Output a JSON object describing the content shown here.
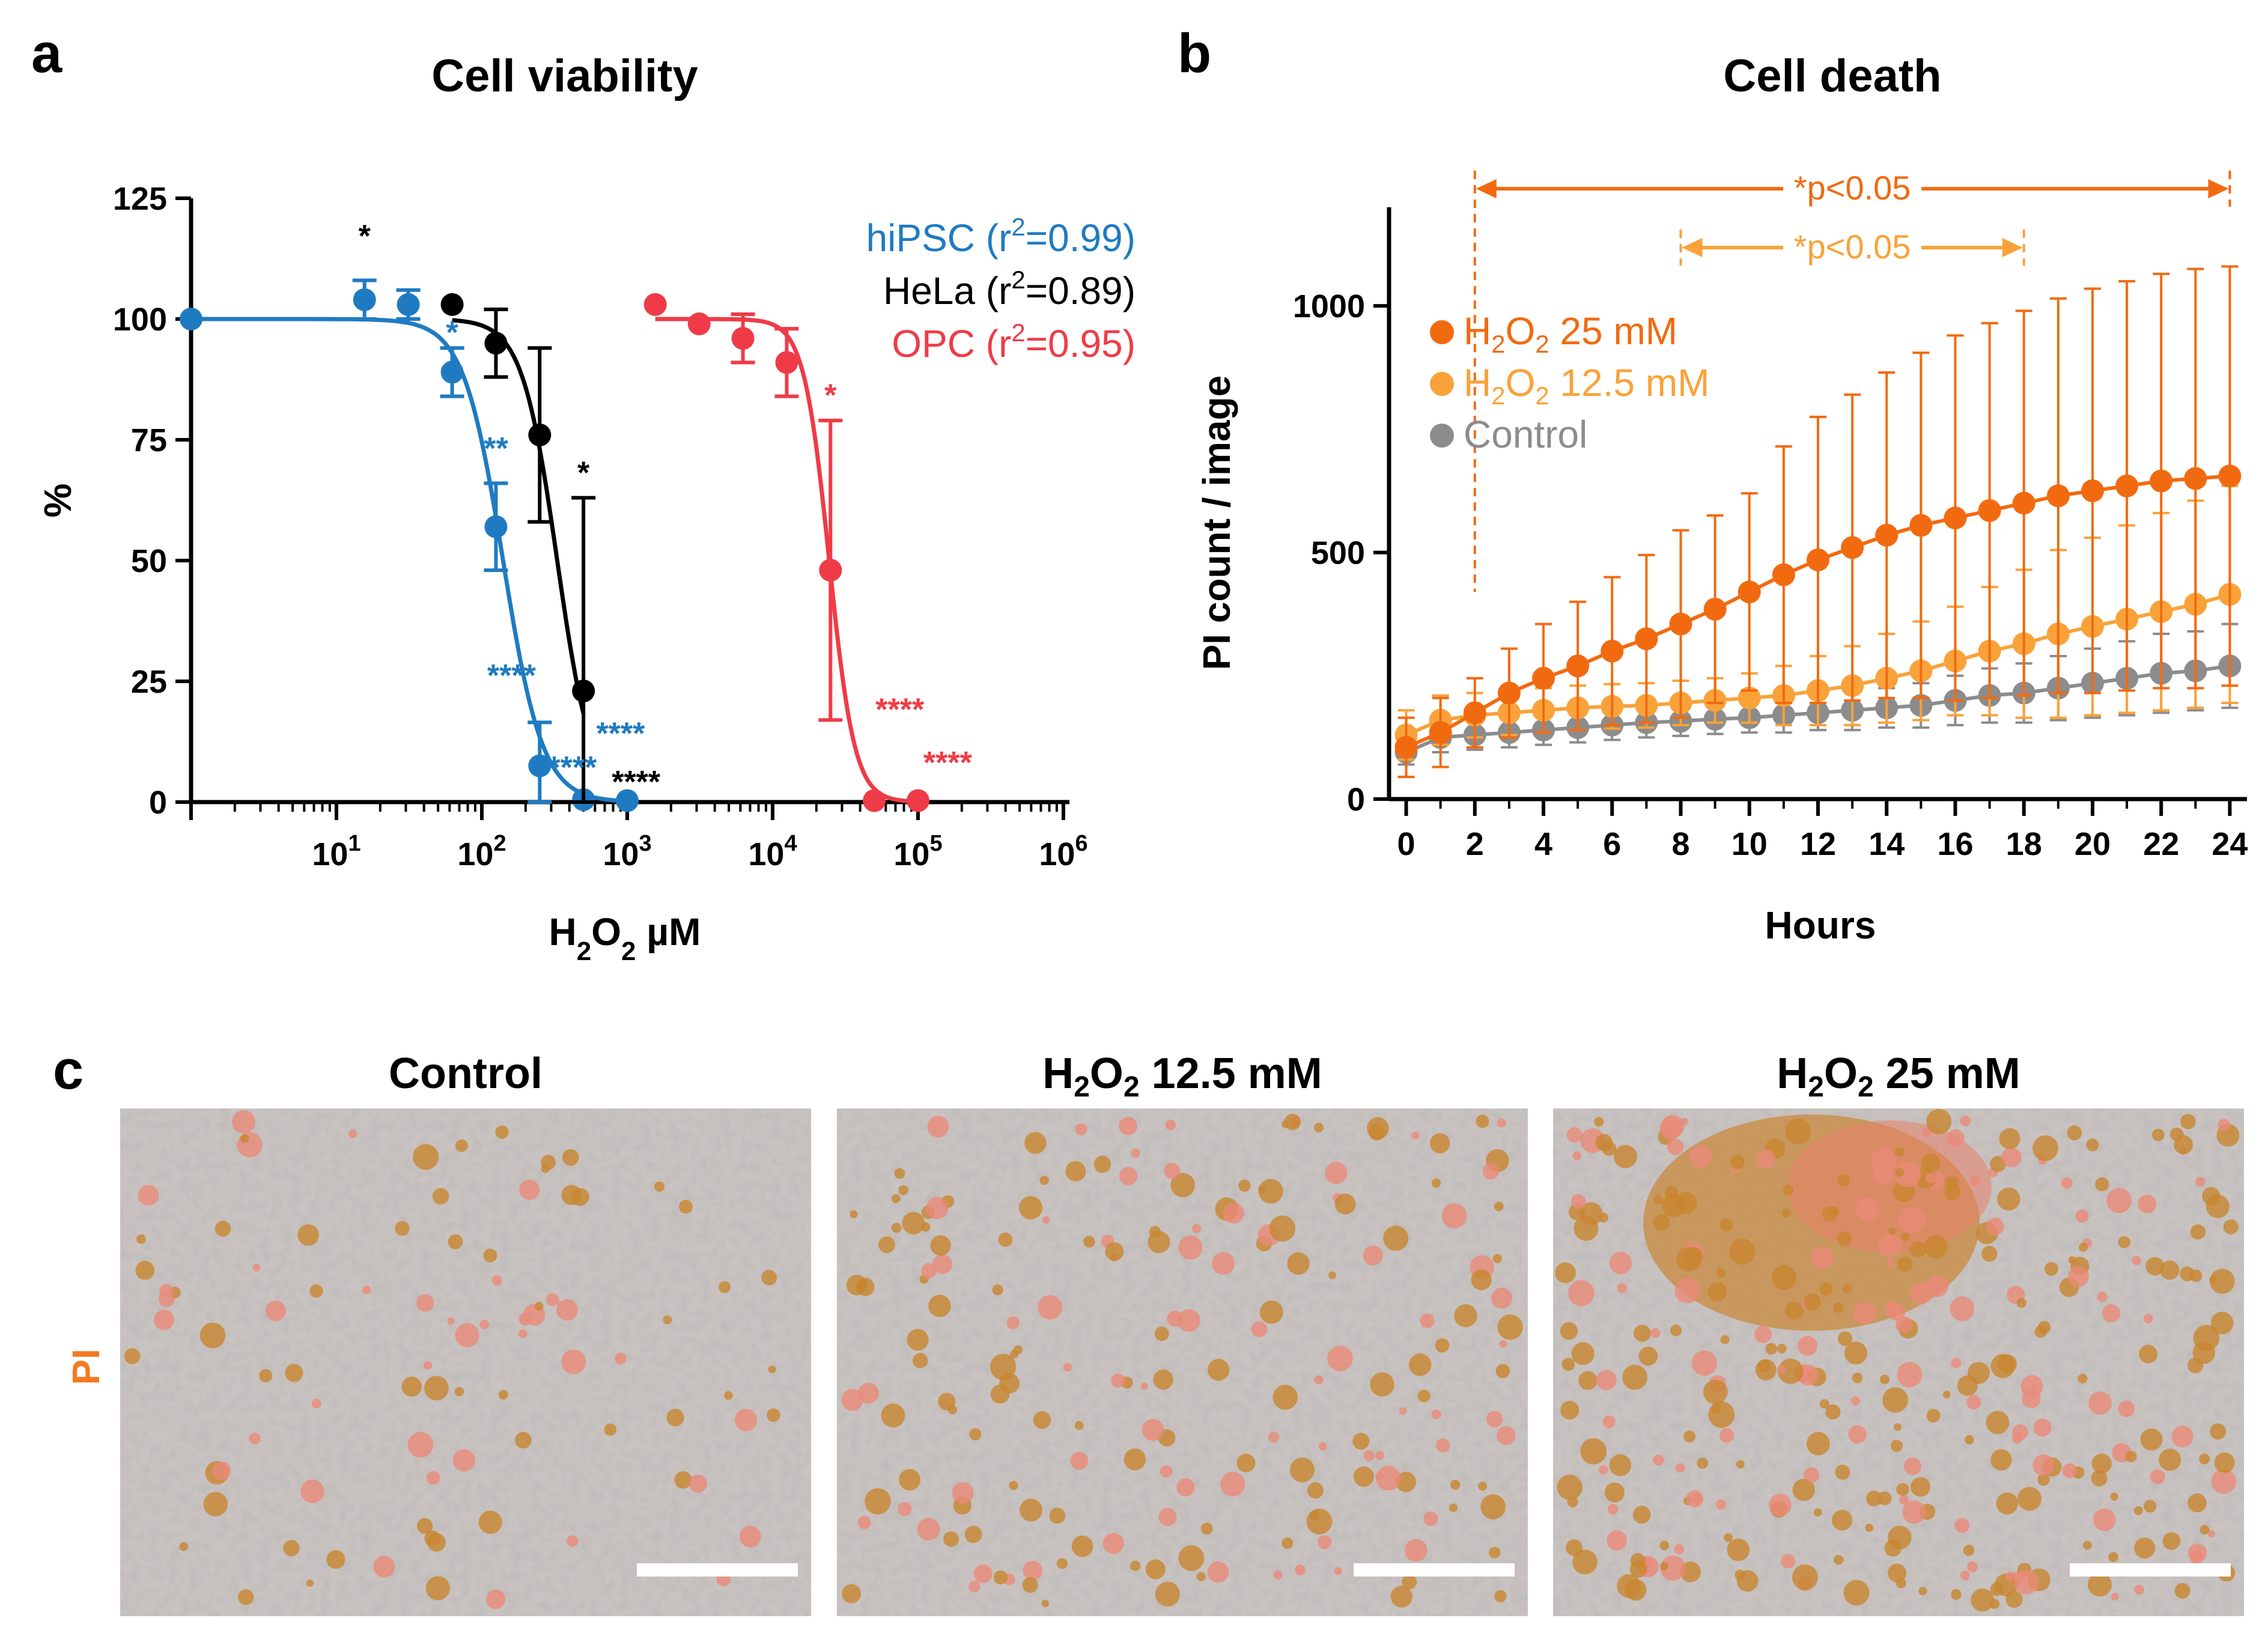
{
  "panel_labels": {
    "a": "a",
    "b": "b",
    "c": "c"
  },
  "colors": {
    "hipsc": "#1f7bc1",
    "hela": "#000000",
    "opc": "#ef3b47",
    "h2o2_25": "#f26a10",
    "h2o2_12": "#f9a23a",
    "control": "#8c8c8c",
    "pi_label": "#f47a20"
  },
  "chart_data": [
    {
      "type": "scatter",
      "title": "Cell viability",
      "xlabel": "H₂O₂ µM",
      "ylabel": "%",
      "x_scale": "log",
      "xlim": [
        1,
        1000000
      ],
      "ylim": [
        0,
        125
      ],
      "xticks": [
        10,
        100,
        1000,
        10000,
        100000,
        1000000
      ],
      "xtick_labels": [
        {
          "base": "10",
          "exp": "1"
        },
        {
          "base": "10",
          "exp": "2"
        },
        {
          "base": "10",
          "exp": "3"
        },
        {
          "base": "10",
          "exp": "4"
        },
        {
          "base": "10",
          "exp": "5"
        },
        {
          "base": "10",
          "exp": "6"
        }
      ],
      "yticks": [
        "0",
        "25",
        "50",
        "75",
        "100",
        "125"
      ],
      "ytick_values": [
        0,
        25,
        50,
        75,
        100,
        125
      ],
      "series": [
        {
          "key": "hipsc",
          "name": "hiPSC",
          "legend_prefix": "hiPSC (r",
          "legend_sup": "2",
          "legend_suffix": "=0.99)",
          "ic50": 140,
          "hill": 3.2,
          "points": [
            {
              "x": 1,
              "y": 100,
              "err": 0
            },
            {
              "x": 15.6,
              "y": 104,
              "err": 4
            },
            {
              "x": 31.2,
              "y": 103,
              "err": 3
            },
            {
              "x": 62.5,
              "y": 89,
              "err": 5
            },
            {
              "x": 125,
              "y": 57,
              "err": 9
            },
            {
              "x": 250,
              "y": 7.5,
              "err": 9
            },
            {
              "x": 500,
              "y": 0.5,
              "err": 0
            },
            {
              "x": 1000,
              "y": 0.3,
              "err": 0
            }
          ]
        },
        {
          "key": "hela",
          "name": "HeLa",
          "legend_prefix": "HeLa (r",
          "legend_sup": "2",
          "legend_suffix": "=0.89)",
          "ic50": 330,
          "hill": 3.6,
          "points": [
            {
              "x": 62.5,
              "y": 103,
              "err": 0
            },
            {
              "x": 125,
              "y": 95,
              "err": 7
            },
            {
              "x": 250,
              "y": 76,
              "err": 18
            },
            {
              "x": 500,
              "y": 23,
              "err": 40
            }
          ]
        },
        {
          "key": "opc",
          "name": "OPC",
          "legend_prefix": "OPC (r",
          "legend_sup": "2",
          "legend_suffix": "=0.95)",
          "ic50": 24500,
          "hill": 5,
          "points": [
            {
              "x": 1560,
              "y": 103,
              "err": 0
            },
            {
              "x": 3125,
              "y": 99,
              "err": 0
            },
            {
              "x": 6250,
              "y": 96,
              "err": 5
            },
            {
              "x": 12500,
              "y": 91,
              "err": 7
            },
            {
              "x": 25000,
              "y": 48,
              "err": 31
            },
            {
              "x": 50000,
              "y": 0.3,
              "err": 0
            },
            {
              "x": 100000,
              "y": 0.3,
              "err": 0
            }
          ]
        }
      ],
      "annotations": [
        {
          "text": "*",
          "color": "hela",
          "x": 15.6,
          "y": 115
        },
        {
          "text": "*",
          "color": "hipsc",
          "x": 62.5,
          "y": 95
        },
        {
          "text": "**",
          "color": "hipsc",
          "x": 125,
          "y": 71
        },
        {
          "text": "*",
          "color": "hela",
          "x": 500,
          "y": 66
        },
        {
          "text": "****",
          "color": "hipsc",
          "x": 160,
          "y": 24
        },
        {
          "text": "****",
          "color": "hipsc",
          "x": 900,
          "y": 12
        },
        {
          "text": "****",
          "color": "hipsc",
          "x": 420,
          "y": 5
        },
        {
          "text": "****",
          "color": "hela",
          "x": 1150,
          "y": 2
        },
        {
          "text": "*",
          "color": "opc",
          "x": 25000,
          "y": 82
        },
        {
          "text": "****",
          "color": "opc",
          "x": 75000,
          "y": 17
        },
        {
          "text": "****",
          "color": "opc",
          "x": 160000,
          "y": 6
        }
      ]
    },
    {
      "type": "line",
      "title": "Cell death",
      "xlabel": "Hours",
      "ylabel": "PI count / image",
      "xlim": [
        -0.5,
        24.5
      ],
      "ylim": [
        0,
        1200
      ],
      "xticks": [
        "0",
        "2",
        "4",
        "6",
        "8",
        "10",
        "12",
        "14",
        "16",
        "18",
        "20",
        "22",
        "24"
      ],
      "xtick_values": [
        0,
        2,
        4,
        6,
        8,
        10,
        12,
        14,
        16,
        18,
        20,
        22,
        24
      ],
      "yticks": [
        "0",
        "500",
        "1000"
      ],
      "ytick_values": [
        0,
        500,
        1000
      ],
      "x": [
        0,
        1,
        2,
        3,
        4,
        5,
        6,
        7,
        8,
        9,
        10,
        11,
        12,
        13,
        14,
        15,
        16,
        17,
        18,
        19,
        20,
        21,
        22,
        23,
        24
      ],
      "series": [
        {
          "key": "h2o2_25",
          "name_main": "H",
          "name_sub1": "2",
          "name_mid": "O",
          "name_sub2": "2",
          "name_rest": " 25 mM",
          "values": [
            105,
            135,
            175,
            215,
            245,
            270,
            300,
            325,
            355,
            385,
            420,
            455,
            485,
            510,
            535,
            555,
            570,
            585,
            600,
            615,
            625,
            635,
            645,
            650,
            655
          ],
          "err": [
            60,
            70,
            70,
            90,
            110,
            130,
            150,
            170,
            190,
            190,
            200,
            260,
            290,
            310,
            330,
            350,
            370,
            380,
            390,
            400,
            410,
            415,
            420,
            425,
            425
          ]
        },
        {
          "key": "h2o2_12",
          "name_main": "H",
          "name_sub1": "2",
          "name_mid": "O",
          "name_sub2": "2",
          "name_rest": " 12.5 mM",
          "values": [
            130,
            160,
            170,
            175,
            180,
            185,
            188,
            190,
            195,
            200,
            205,
            210,
            220,
            230,
            245,
            260,
            280,
            300,
            315,
            335,
            350,
            365,
            380,
            395,
            415
          ],
          "err": [
            50,
            50,
            45,
            45,
            45,
            45,
            45,
            45,
            45,
            45,
            50,
            60,
            70,
            80,
            90,
            100,
            110,
            130,
            150,
            170,
            180,
            190,
            200,
            210,
            220
          ]
        },
        {
          "key": "control",
          "name": "Control",
          "values": [
            95,
            125,
            130,
            135,
            140,
            145,
            150,
            155,
            158,
            162,
            165,
            170,
            175,
            180,
            185,
            190,
            200,
            210,
            215,
            225,
            235,
            245,
            255,
            260,
            270
          ],
          "err": [
            25,
            30,
            30,
            30,
            30,
            30,
            30,
            30,
            30,
            30,
            30,
            35,
            35,
            40,
            40,
            45,
            50,
            55,
            60,
            65,
            70,
            75,
            80,
            80,
            85
          ]
        }
      ],
      "brackets": [
        {
          "text": "*p<0.05",
          "from": 2,
          "to": 24,
          "color": "h2o2_25"
        },
        {
          "text": "*p<0.05",
          "from": 8,
          "to": 18,
          "color": "h2o2_12"
        }
      ]
    }
  ],
  "panel_c": {
    "row_label": "PI",
    "images": [
      {
        "title_main": "Control",
        "title_sub1": "",
        "title_mid": "",
        "title_sub2": "",
        "title_rest": ""
      },
      {
        "title_main": "H",
        "title_sub1": "2",
        "title_mid": "O",
        "title_sub2": "2",
        "title_rest": " 12.5 mM"
      },
      {
        "title_main": "H",
        "title_sub1": "2",
        "title_mid": "O",
        "title_sub2": "2",
        "title_rest": " 25 mM"
      }
    ]
  }
}
